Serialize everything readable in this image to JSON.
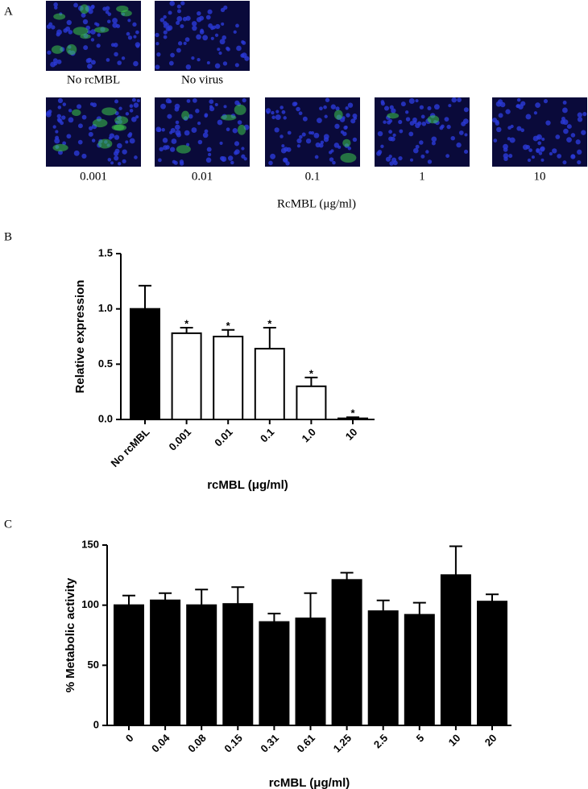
{
  "panel_labels": [
    "A",
    "B",
    "C"
  ],
  "panel_a": {
    "top_labels": [
      "No rcMBL",
      "No virus"
    ],
    "bottom_labels": [
      "0.001",
      "0.01",
      "0.1",
      "1",
      "10"
    ],
    "axis_label": "RcMBL (μg/ml)"
  },
  "chart_data": [
    {
      "type": "bar",
      "categories": [
        "No rcMBL",
        "0.001",
        "0.01",
        "0.1",
        "1.0",
        "10"
      ],
      "values": [
        1.0,
        0.78,
        0.75,
        0.64,
        0.3,
        0.01
      ],
      "errors": [
        0.21,
        0.05,
        0.06,
        0.19,
        0.08,
        0.01
      ],
      "colors": [
        "#000000",
        "#ffffff",
        "#ffffff",
        "#ffffff",
        "#ffffff",
        "#ffffff"
      ],
      "annotations": [
        null,
        "*",
        "*",
        "*",
        "*",
        "*"
      ],
      "ylim": [
        0,
        1.5
      ],
      "yticks": [
        {
          "value": 0,
          "label": "0.0"
        },
        0.5,
        {
          "value": 1,
          "label": "1.0"
        },
        1.5
      ],
      "ylabel": "Relative expression",
      "xlabel": "rcMBL (μg/ml)"
    },
    {
      "type": "bar",
      "categories": [
        "0",
        "0.04",
        "0.08",
        "0.15",
        "0.31",
        "0.61",
        "1.25",
        "2.5",
        "5",
        "10",
        "20"
      ],
      "values": [
        100,
        104,
        100,
        101,
        86,
        89,
        121,
        95,
        92,
        125,
        103
      ],
      "errors": [
        8,
        6,
        13,
        14,
        7,
        21,
        6,
        9,
        10,
        24,
        6
      ],
      "color": "#000000",
      "ylim": [
        0,
        150
      ],
      "yticks": [
        0,
        50,
        100,
        150
      ],
      "ylabel": "% Metabolic activity",
      "xlabel": "rcMBL (μg/ml)"
    }
  ]
}
